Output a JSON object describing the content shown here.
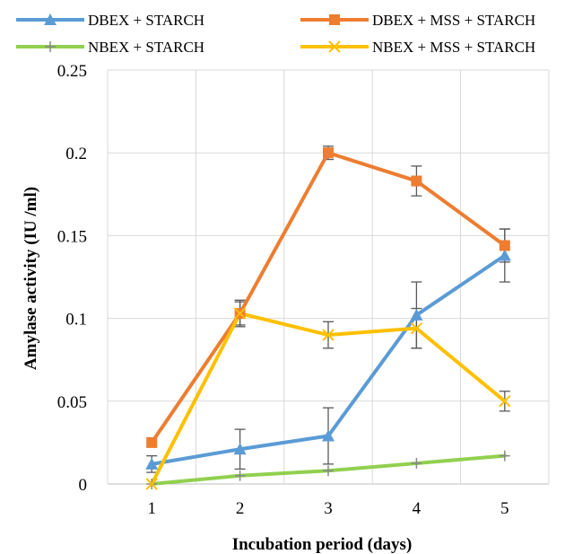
{
  "chart_data": {
    "type": "line",
    "xlabel": "Incubation period (days)",
    "ylabel": "Amylase activity (IU /ml)",
    "x": [
      1,
      2,
      3,
      4,
      5
    ],
    "x_tick_labels": [
      "1",
      "2",
      "3",
      "4",
      "5"
    ],
    "ylim": [
      0,
      0.25
    ],
    "y_ticks": [
      0,
      0.05,
      0.1,
      0.15,
      0.2,
      0.25
    ],
    "y_tick_labels": [
      "0",
      "0.05",
      "0.1",
      "0.15",
      "0.2",
      "0.25"
    ],
    "grid": true,
    "legend_position": "top",
    "series": [
      {
        "name": "DBEX + STARCH",
        "color": "#5B9BD5",
        "marker": "triangle",
        "values": [
          0.012,
          0.021,
          0.029,
          0.102,
          0.138
        ],
        "errors": [
          0.005,
          0.012,
          0.017,
          0.02,
          0.016
        ]
      },
      {
        "name": "DBEX + MSS + STARCH",
        "color": "#ED7D31",
        "marker": "square",
        "values": [
          0.025,
          0.103,
          0.2,
          0.183,
          0.144
        ],
        "errors": [
          0.0,
          0.008,
          0.004,
          0.009,
          0.01
        ]
      },
      {
        "name": "NBEX + STARCH",
        "color": "#92D050",
        "marker": "plus",
        "values": [
          0.0,
          0.005,
          0.008,
          0.0125,
          0.017
        ],
        "errors": [
          0.0,
          0.0,
          0.0,
          0.0,
          0.0
        ]
      },
      {
        "name": "NBEX + MSS + STARCH",
        "color": "#FFC000",
        "marker": "x",
        "values": [
          0.0,
          0.103,
          0.09,
          0.094,
          0.05
        ],
        "errors": [
          0.0,
          0.007,
          0.008,
          0.012,
          0.006
        ]
      }
    ]
  }
}
